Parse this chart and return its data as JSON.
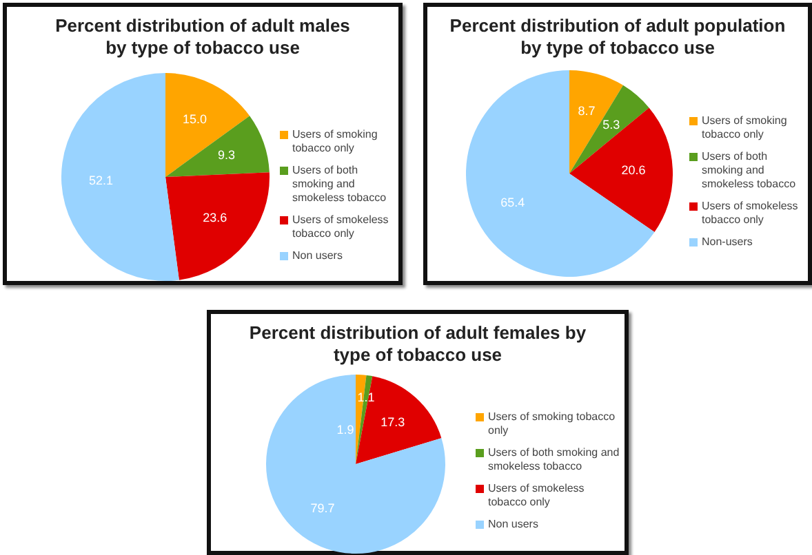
{
  "chart_data": [
    {
      "type": "pie",
      "title": "Percent distribution of adult males by type of tobacco use",
      "categories": [
        "Users of smoking tobacco only",
        "Users of both smoking and smokeless tobacco",
        "Users of smokeless tobacco only",
        "Non users"
      ],
      "values": [
        15.0,
        9.3,
        23.6,
        52.1
      ],
      "value_labels": [
        "15.0",
        "9.3",
        "23.6",
        "52.1"
      ],
      "colors": [
        "#ffa500",
        "#5a9e1e",
        "#e00000",
        "#99d3ff"
      ],
      "legend": "right"
    },
    {
      "type": "pie",
      "title": "Percent distribution of adult population by type of tobacco use",
      "categories": [
        "Users of smoking tobacco only",
        "Users of both smoking and smokeless tobacco",
        "Users of smokeless tobacco only",
        "Non-users"
      ],
      "values": [
        8.7,
        5.3,
        20.6,
        65.4
      ],
      "value_labels": [
        "8.7",
        "5.3",
        "20.6",
        "65.4"
      ],
      "colors": [
        "#ffa500",
        "#5a9e1e",
        "#e00000",
        "#99d3ff"
      ],
      "legend": "right"
    },
    {
      "type": "pie",
      "title": "Percent distribution of adult females by type of tobacco use",
      "categories": [
        "Users of smoking tobacco only",
        "Users of both smoking and smokeless tobacco",
        "Users of smokeless tobacco only",
        "Non users"
      ],
      "values": [
        1.9,
        1.1,
        17.3,
        79.7
      ],
      "value_labels": [
        "1.9",
        "1.1",
        "17.3",
        "79.7"
      ],
      "colors": [
        "#ffa500",
        "#5a9e1e",
        "#e00000",
        "#99d3ff"
      ],
      "legend": "right"
    }
  ]
}
